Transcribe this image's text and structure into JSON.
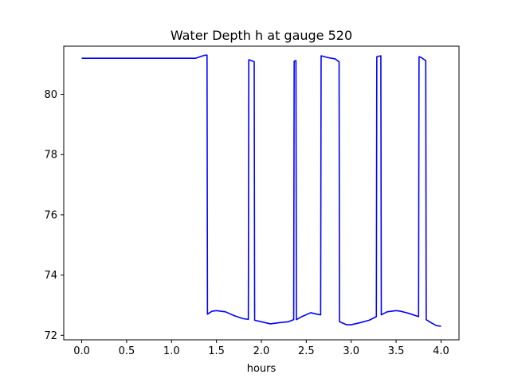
{
  "chart_data": {
    "type": "line",
    "title": "Water Depth h at gauge 520",
    "xlabel": "hours",
    "ylabel": "",
    "xlim": [
      -0.2,
      4.2
    ],
    "ylim": [
      71.85,
      81.6
    ],
    "xticks": [
      0.0,
      0.5,
      1.0,
      1.5,
      2.0,
      2.5,
      3.0,
      3.5,
      4.0
    ],
    "xtick_labels": [
      "0.0",
      "0.5",
      "1.0",
      "1.5",
      "2.0",
      "2.5",
      "3.0",
      "3.5",
      "4.0"
    ],
    "yticks": [
      72,
      74,
      76,
      78,
      80
    ],
    "ytick_labels": [
      "72",
      "74",
      "76",
      "78",
      "80"
    ],
    "grid": false,
    "series": [
      {
        "color": "#0000ff",
        "x": [
          0.0,
          1.27,
          1.37,
          1.395,
          1.4,
          1.45,
          1.5,
          1.6,
          1.7,
          1.8,
          1.855,
          1.86,
          1.92,
          1.925,
          2.0,
          2.1,
          2.2,
          2.3,
          2.36,
          2.365,
          2.385,
          2.39,
          2.45,
          2.55,
          2.62,
          2.66,
          2.665,
          2.74,
          2.82,
          2.865,
          2.87,
          2.95,
          3.0,
          3.1,
          3.2,
          3.28,
          3.285,
          3.33,
          3.335,
          3.4,
          3.5,
          3.55,
          3.65,
          3.75,
          3.755,
          3.78,
          3.83,
          3.835,
          3.9,
          3.95,
          4.0
        ],
        "y": [
          81.2,
          81.2,
          81.3,
          81.3,
          72.7,
          72.8,
          72.82,
          72.78,
          72.65,
          72.55,
          72.53,
          81.15,
          81.08,
          72.5,
          72.45,
          72.38,
          72.42,
          72.45,
          72.52,
          81.1,
          81.12,
          72.52,
          72.62,
          72.75,
          72.7,
          72.68,
          81.28,
          81.22,
          81.18,
          81.08,
          72.45,
          72.35,
          72.35,
          72.42,
          72.5,
          72.62,
          81.25,
          81.28,
          72.68,
          72.78,
          72.82,
          72.8,
          72.72,
          72.62,
          81.25,
          81.22,
          81.12,
          72.52,
          72.4,
          72.32,
          72.3
        ]
      }
    ]
  }
}
